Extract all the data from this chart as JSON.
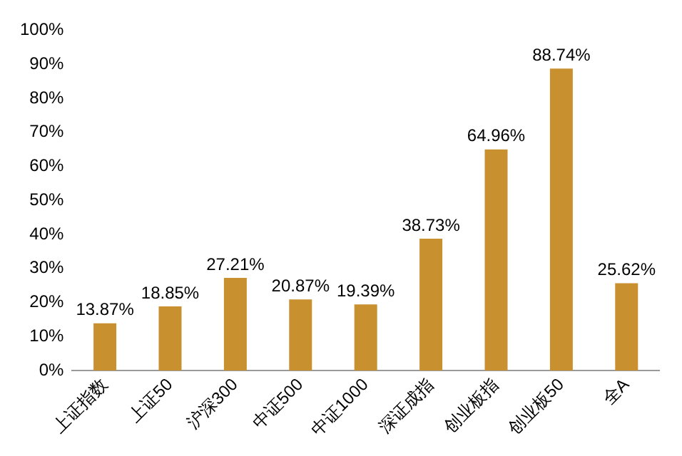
{
  "chart_data": {
    "type": "bar",
    "categories": [
      "上证指数",
      "上证50",
      "沪深300",
      "中证500",
      "中证1000",
      "深证成指",
      "创业板指",
      "创业板50",
      "全A"
    ],
    "values": [
      13.87,
      18.85,
      27.21,
      20.87,
      19.39,
      38.73,
      64.96,
      88.74,
      25.62
    ],
    "value_labels": [
      "13.87%",
      "18.85%",
      "27.21%",
      "20.87%",
      "19.39%",
      "38.73%",
      "64.96%",
      "88.74%",
      "25.62%"
    ],
    "color": "#c8902f",
    "ylim": [
      0,
      100
    ],
    "yticks": [
      {
        "value": 0,
        "label": "0%"
      },
      {
        "value": 10,
        "label": "10%"
      },
      {
        "value": 20,
        "label": "20%"
      },
      {
        "value": 30,
        "label": "30%"
      },
      {
        "value": 40,
        "label": "40%"
      },
      {
        "value": 50,
        "label": "50%"
      },
      {
        "value": 60,
        "label": "60%"
      },
      {
        "value": 70,
        "label": "70%"
      },
      {
        "value": 80,
        "label": "80%"
      },
      {
        "value": 90,
        "label": "90%"
      },
      {
        "value": 100,
        "label": "100%"
      }
    ],
    "grid": false,
    "legend": false
  }
}
